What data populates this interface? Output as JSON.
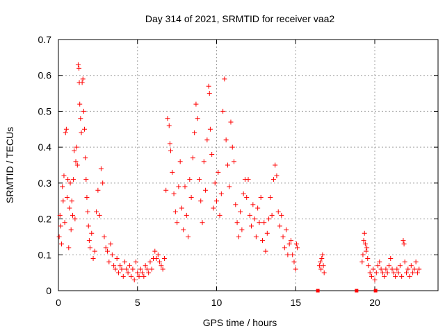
{
  "chart_data": {
    "type": "scatter",
    "title": "Day 314 of 2021, SRMTID for receiver vaa2",
    "xlabel": "GPS time / hours",
    "ylabel": "SRMTID / TECUs",
    "xlim": [
      0,
      24
    ],
    "ylim": [
      0,
      0.7
    ],
    "xticks": [
      0,
      5,
      10,
      15,
      20
    ],
    "xtick_labels": [
      "0",
      "5",
      "10",
      "15",
      "20"
    ],
    "yticks": [
      0,
      0.1,
      0.2,
      0.3,
      0.4,
      0.5,
      0.6,
      0.7
    ],
    "ytick_labels": [
      "0",
      "0.1",
      "0.2",
      "0.3",
      "0.4",
      "0.5",
      "0.6",
      "0.7"
    ],
    "grid": true,
    "marker": "+",
    "color": "#ff0000",
    "series": [
      {
        "name": "SRMTID",
        "points": [
          [
            0.05,
            0.15
          ],
          [
            0.1,
            0.21
          ],
          [
            0.15,
            0.18
          ],
          [
            0.2,
            0.13
          ],
          [
            0.25,
            0.29
          ],
          [
            0.3,
            0.25
          ],
          [
            0.35,
            0.32
          ],
          [
            0.4,
            0.19
          ],
          [
            0.45,
            0.44
          ],
          [
            0.5,
            0.45
          ],
          [
            0.55,
            0.26
          ],
          [
            0.6,
            0.31
          ],
          [
            0.65,
            0.12
          ],
          [
            0.7,
            0.23
          ],
          [
            0.75,
            0.3
          ],
          [
            0.8,
            0.17
          ],
          [
            0.85,
            0.25
          ],
          [
            0.9,
            0.21
          ],
          [
            0.95,
            0.31
          ],
          [
            1.0,
            0.39
          ],
          [
            1.05,
            0.2
          ],
          [
            1.1,
            0.36
          ],
          [
            1.15,
            0.4
          ],
          [
            1.2,
            0.35
          ],
          [
            1.25,
            0.63
          ],
          [
            1.3,
            0.62
          ],
          [
            1.32,
            0.58
          ],
          [
            1.35,
            0.52
          ],
          [
            1.4,
            0.48
          ],
          [
            1.45,
            0.44
          ],
          [
            1.5,
            0.58
          ],
          [
            1.55,
            0.59
          ],
          [
            1.6,
            0.5
          ],
          [
            1.65,
            0.45
          ],
          [
            1.7,
            0.37
          ],
          [
            1.75,
            0.31
          ],
          [
            1.8,
            0.26
          ],
          [
            1.85,
            0.22
          ],
          [
            1.9,
            0.18
          ],
          [
            1.95,
            0.14
          ],
          [
            2.0,
            0.12
          ],
          [
            2.1,
            0.16
          ],
          [
            2.2,
            0.09
          ],
          [
            2.3,
            0.11
          ],
          [
            2.4,
            0.22
          ],
          [
            2.5,
            0.28
          ],
          [
            2.6,
            0.21
          ],
          [
            2.7,
            0.34
          ],
          [
            2.8,
            0.3
          ],
          [
            2.9,
            0.15
          ],
          [
            3.0,
            0.12
          ],
          [
            3.1,
            0.11
          ],
          [
            3.2,
            0.08
          ],
          [
            3.3,
            0.13
          ],
          [
            3.4,
            0.1
          ],
          [
            3.5,
            0.07
          ],
          [
            3.6,
            0.06
          ],
          [
            3.7,
            0.09
          ],
          [
            3.8,
            0.05
          ],
          [
            3.9,
            0.07
          ],
          [
            4.0,
            0.06
          ],
          [
            4.1,
            0.04
          ],
          [
            4.2,
            0.08
          ],
          [
            4.3,
            0.06
          ],
          [
            4.4,
            0.05
          ],
          [
            4.5,
            0.07
          ],
          [
            4.6,
            0.04
          ],
          [
            4.7,
            0.06
          ],
          [
            4.8,
            0.03
          ],
          [
            4.9,
            0.08
          ],
          [
            5.0,
            0.05
          ],
          [
            5.1,
            0.04
          ],
          [
            5.2,
            0.06
          ],
          [
            5.3,
            0.05
          ],
          [
            5.4,
            0.04
          ],
          [
            5.5,
            0.07
          ],
          [
            5.6,
            0.06
          ],
          [
            5.7,
            0.05
          ],
          [
            5.8,
            0.08
          ],
          [
            5.9,
            0.06
          ],
          [
            6.0,
            0.09
          ],
          [
            6.1,
            0.11
          ],
          [
            6.2,
            0.09
          ],
          [
            6.3,
            0.1
          ],
          [
            6.4,
            0.08
          ],
          [
            6.5,
            0.07
          ],
          [
            6.6,
            0.06
          ],
          [
            6.7,
            0.09
          ],
          [
            6.8,
            0.28
          ],
          [
            6.9,
            0.48
          ],
          [
            7.0,
            0.46
          ],
          [
            7.05,
            0.41
          ],
          [
            7.1,
            0.39
          ],
          [
            7.2,
            0.33
          ],
          [
            7.3,
            0.27
          ],
          [
            7.4,
            0.22
          ],
          [
            7.5,
            0.19
          ],
          [
            7.6,
            0.29
          ],
          [
            7.7,
            0.36
          ],
          [
            7.8,
            0.23
          ],
          [
            7.9,
            0.17
          ],
          [
            8.0,
            0.29
          ],
          [
            8.1,
            0.21
          ],
          [
            8.2,
            0.15
          ],
          [
            8.3,
            0.31
          ],
          [
            8.4,
            0.26
          ],
          [
            8.5,
            0.37
          ],
          [
            8.6,
            0.44
          ],
          [
            8.7,
            0.52
          ],
          [
            8.8,
            0.48
          ],
          [
            8.9,
            0.31
          ],
          [
            9.0,
            0.25
          ],
          [
            9.1,
            0.19
          ],
          [
            9.2,
            0.36
          ],
          [
            9.3,
            0.28
          ],
          [
            9.4,
            0.42
          ],
          [
            9.5,
            0.57
          ],
          [
            9.55,
            0.55
          ],
          [
            9.6,
            0.45
          ],
          [
            9.7,
            0.38
          ],
          [
            9.8,
            0.23
          ],
          [
            9.9,
            0.3
          ],
          [
            10.0,
            0.25
          ],
          [
            10.1,
            0.33
          ],
          [
            10.2,
            0.21
          ],
          [
            10.3,
            0.27
          ],
          [
            10.4,
            0.5
          ],
          [
            10.5,
            0.59
          ],
          [
            10.6,
            0.42
          ],
          [
            10.7,
            0.35
          ],
          [
            10.8,
            0.29
          ],
          [
            10.9,
            0.47
          ],
          [
            11.0,
            0.4
          ],
          [
            11.1,
            0.36
          ],
          [
            11.2,
            0.24
          ],
          [
            11.3,
            0.19
          ],
          [
            11.4,
            0.15
          ],
          [
            11.5,
            0.22
          ],
          [
            11.6,
            0.17
          ],
          [
            11.7,
            0.27
          ],
          [
            11.8,
            0.31
          ],
          [
            11.9,
            0.26
          ],
          [
            12.0,
            0.31
          ],
          [
            12.1,
            0.21
          ],
          [
            12.2,
            0.18
          ],
          [
            12.3,
            0.24
          ],
          [
            12.4,
            0.2
          ],
          [
            12.5,
            0.15
          ],
          [
            12.6,
            0.23
          ],
          [
            12.7,
            0.19
          ],
          [
            12.8,
            0.26
          ],
          [
            12.9,
            0.14
          ],
          [
            13.0,
            0.19
          ],
          [
            13.1,
            0.11
          ],
          [
            13.2,
            0.16
          ],
          [
            13.3,
            0.2
          ],
          [
            13.4,
            0.26
          ],
          [
            13.5,
            0.21
          ],
          [
            13.6,
            0.31
          ],
          [
            13.7,
            0.35
          ],
          [
            13.8,
            0.32
          ],
          [
            13.9,
            0.22
          ],
          [
            14.0,
            0.18
          ],
          [
            14.1,
            0.21
          ],
          [
            14.2,
            0.15
          ],
          [
            14.3,
            0.12
          ],
          [
            14.4,
            0.17
          ],
          [
            14.5,
            0.1
          ],
          [
            14.6,
            0.13
          ],
          [
            14.7,
            0.14
          ],
          [
            14.8,
            0.1
          ],
          [
            14.9,
            0.08
          ],
          [
            15.0,
            0.06
          ],
          [
            15.05,
            0.13
          ],
          [
            15.1,
            0.12
          ],
          [
            16.5,
            0.07
          ],
          [
            16.55,
            0.08
          ],
          [
            16.6,
            0.06
          ],
          [
            16.65,
            0.09
          ],
          [
            16.7,
            0.1
          ],
          [
            16.75,
            0.07
          ],
          [
            16.8,
            0.05
          ],
          [
            19.2,
            0.08
          ],
          [
            19.25,
            0.1
          ],
          [
            19.3,
            0.14
          ],
          [
            19.35,
            0.16
          ],
          [
            19.4,
            0.13
          ],
          [
            19.45,
            0.11
          ],
          [
            19.5,
            0.12
          ],
          [
            19.55,
            0.09
          ],
          [
            19.6,
            0.07
          ],
          [
            19.7,
            0.05
          ],
          [
            19.8,
            0.04
          ],
          [
            19.9,
            0.06
          ],
          [
            20.0,
            0.03
          ],
          [
            20.1,
            0.05
          ],
          [
            20.2,
            0.07
          ],
          [
            20.3,
            0.08
          ],
          [
            20.4,
            0.06
          ],
          [
            20.5,
            0.05
          ],
          [
            20.6,
            0.04
          ],
          [
            20.7,
            0.06
          ],
          [
            20.8,
            0.05
          ],
          [
            20.9,
            0.07
          ],
          [
            21.0,
            0.09
          ],
          [
            21.1,
            0.06
          ],
          [
            21.2,
            0.05
          ],
          [
            21.3,
            0.04
          ],
          [
            21.4,
            0.06
          ],
          [
            21.5,
            0.05
          ],
          [
            21.6,
            0.07
          ],
          [
            21.7,
            0.04
          ],
          [
            21.8,
            0.14
          ],
          [
            21.85,
            0.13
          ],
          [
            21.9,
            0.08
          ],
          [
            22.0,
            0.05
          ],
          [
            22.1,
            0.06
          ],
          [
            22.2,
            0.04
          ],
          [
            22.3,
            0.07
          ],
          [
            22.4,
            0.05
          ],
          [
            22.5,
            0.06
          ],
          [
            22.6,
            0.08
          ],
          [
            22.7,
            0.05
          ],
          [
            22.8,
            0.06
          ]
        ]
      }
    ],
    "zero_markers": [
      16.4,
      18.85,
      20.05
    ]
  }
}
